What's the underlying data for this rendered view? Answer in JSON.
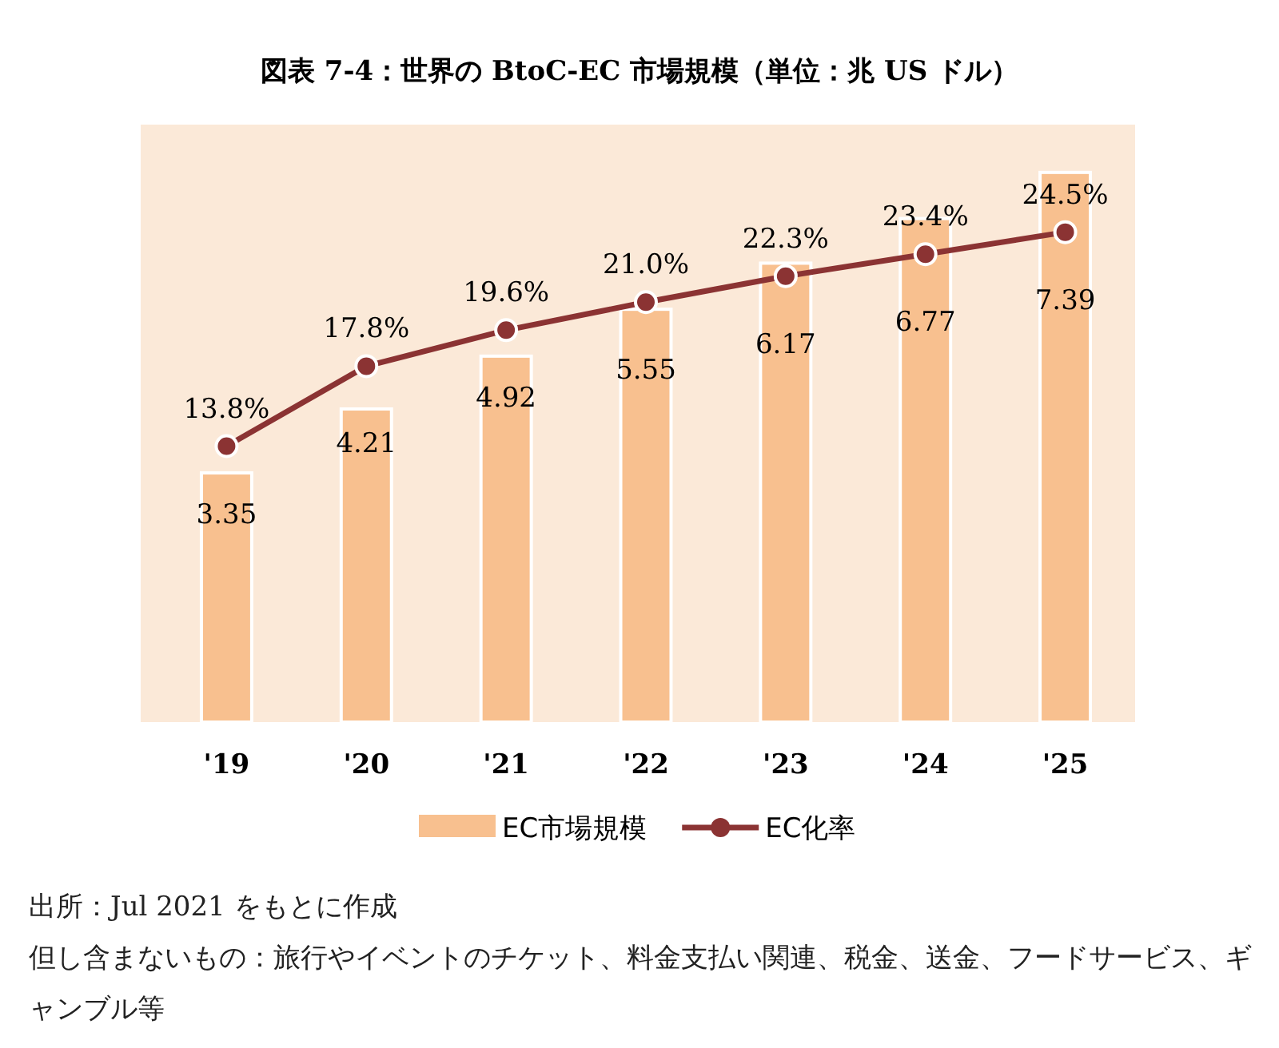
{
  "chart_data": {
    "type": "bar",
    "title": "図表 7-4：世界の BtoC-EC 市場規模（単位：兆 US ドル）",
    "categories": [
      "'19",
      "'20",
      "'21",
      "'22",
      "'23",
      "'24",
      "'25"
    ],
    "series": [
      {
        "name": "EC市場規模",
        "color": "#f8c08f",
        "values": [
          3.35,
          4.21,
          4.92,
          5.55,
          6.17,
          6.77,
          7.39
        ],
        "value_labels": [
          "3.35",
          "4.21",
          "4.92",
          "5.55",
          "6.17",
          "6.77",
          "7.39"
        ]
      },
      {
        "name": "EC化率",
        "type": "line",
        "axis": "y2",
        "color": "#8b3333",
        "marker": "circle",
        "values": [
          13.8,
          17.8,
          19.6,
          21.0,
          22.3,
          23.4,
          24.5
        ],
        "value_labels": [
          "13.8%",
          "17.8%",
          "19.6%",
          "21.0%",
          "22.3%",
          "23.4%",
          "24.5%"
        ]
      }
    ],
    "legend": "bottom",
    "annotations": [
      "出所：Jul 2021 をもとに作成",
      "但し含まないもの：旅行やイベントのチケット、料金支払い関連、税金、送金、フードサービス、ギャンブル等"
    ]
  }
}
